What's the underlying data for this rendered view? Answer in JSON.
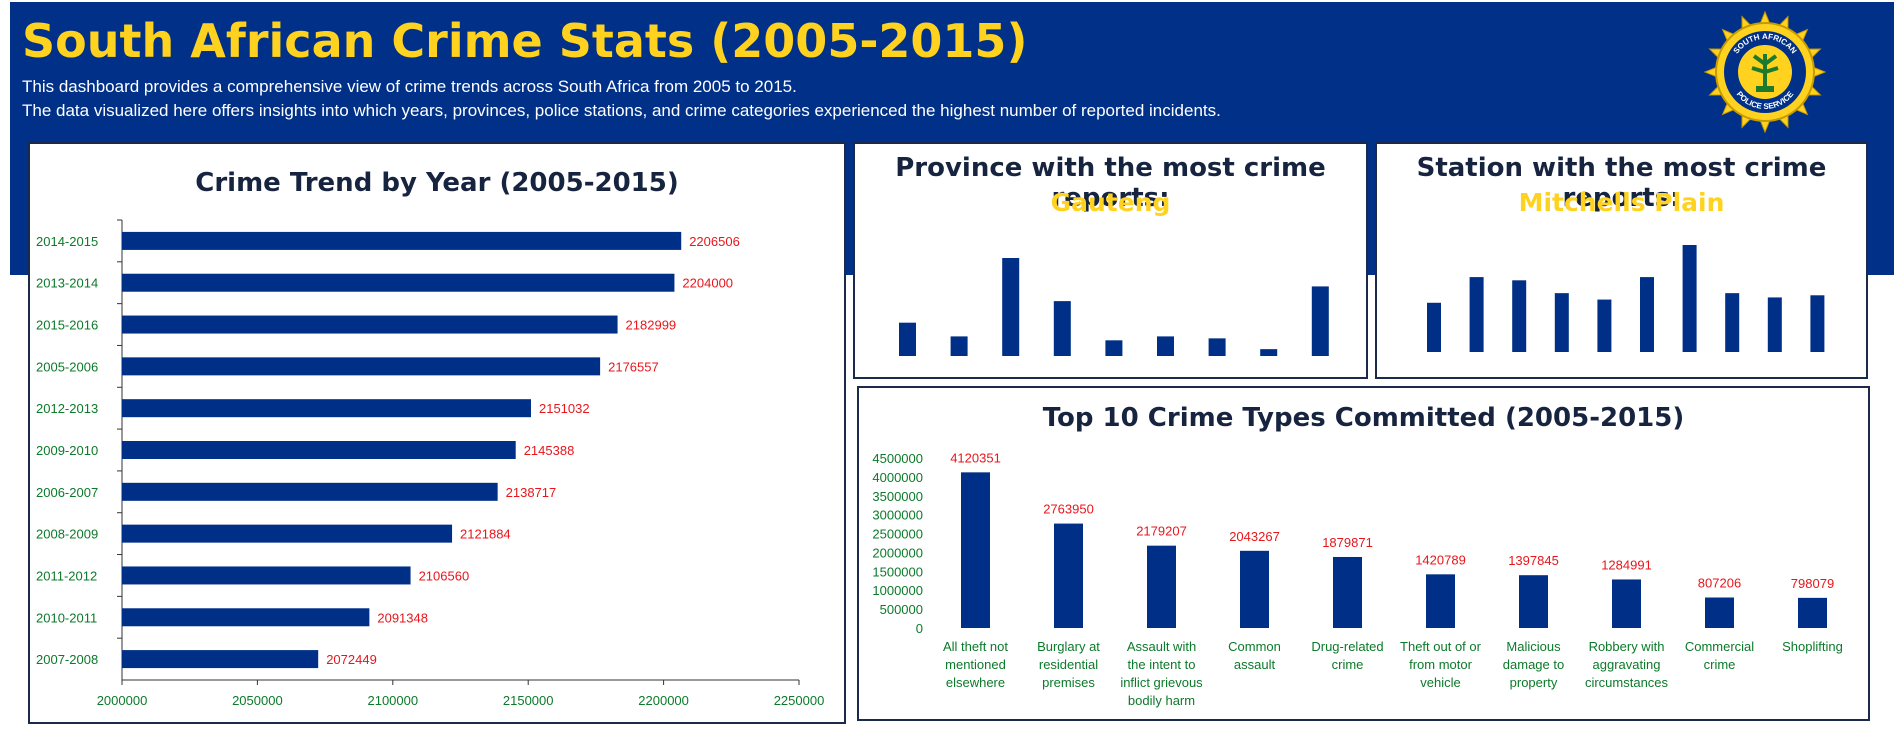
{
  "header": {
    "title": "South African Crime Stats (2005-2015)",
    "desc_line1": "This dashboard provides a comprehensive view of crime trends across South Africa from 2005 to 2015.",
    "desc_line2": "The data visualized here offers insights into which years, provinces, police stations, and crime categories experienced the highest number of reported incidents.",
    "logo_text_top": "SOUTH AFRICAN",
    "logo_text_bottom": "POLICE SERVICE"
  },
  "colors": {
    "band": "#003087",
    "accent": "#FFD21F",
    "bar": "#002f87",
    "label_red": "#e8161b",
    "tick_green": "#0c7a2a"
  },
  "province_card": {
    "title": "Province with the most crime reports:",
    "value": "Gauteng"
  },
  "station_card": {
    "title": "Station with the most crime reports:",
    "value": "Mitchells Plain"
  },
  "chart_data": [
    {
      "type": "bar",
      "orientation": "horizontal",
      "title": "Crime Trend by Year (2005-2015)",
      "categories": [
        "2014-2015",
        "2013-2014",
        "2015-2016",
        "2005-2006",
        "2012-2013",
        "2009-2010",
        "2006-2007",
        "2008-2009",
        "2011-2012",
        "2010-2011",
        "2007-2008"
      ],
      "values": [
        2206506,
        2204000,
        2182999,
        2176557,
        2151032,
        2145388,
        2138717,
        2121884,
        2106560,
        2091348,
        2072449
      ],
      "xlim": [
        2000000,
        2250000
      ],
      "xticks": [
        2000000,
        2050000,
        2100000,
        2150000,
        2200000,
        2250000
      ]
    },
    {
      "type": "bar",
      "title": "Province with the most crime reports:",
      "values": [
        0.34,
        0.2,
        1.0,
        0.56,
        0.16,
        0.2,
        0.18,
        0.07,
        0.71
      ]
    },
    {
      "type": "bar",
      "title": "Station with the most crime reports:",
      "values": [
        0.46,
        0.7,
        0.67,
        0.55,
        0.49,
        0.7,
        1.0,
        0.55,
        0.51,
        0.53
      ]
    },
    {
      "type": "bar",
      "title": "Top 10 Crime Types Committed (2005-2015)",
      "categories": [
        [
          "All theft not",
          "mentioned",
          "elsewhere"
        ],
        [
          "Burglary at",
          "residential",
          "premises"
        ],
        [
          "Assault with",
          "the intent to",
          "inflict grievous",
          "bodily harm"
        ],
        [
          "Common",
          "assault"
        ],
        [
          "Drug-related",
          "crime"
        ],
        [
          "Theft out of or",
          "from motor",
          "vehicle"
        ],
        [
          "Malicious",
          "damage to",
          "property"
        ],
        [
          "Robbery with",
          "aggravating",
          "circumstances"
        ],
        [
          "Commercial",
          "crime"
        ],
        [
          "Shoplifting"
        ]
      ],
      "values": [
        4120351,
        2763950,
        2179207,
        2043267,
        1879871,
        1420789,
        1397845,
        1284991,
        807206,
        798079
      ],
      "ylim": [
        0,
        4500000
      ],
      "yticks": [
        0,
        500000,
        1000000,
        1500000,
        2000000,
        2500000,
        3000000,
        3500000,
        4000000,
        4500000
      ]
    }
  ]
}
